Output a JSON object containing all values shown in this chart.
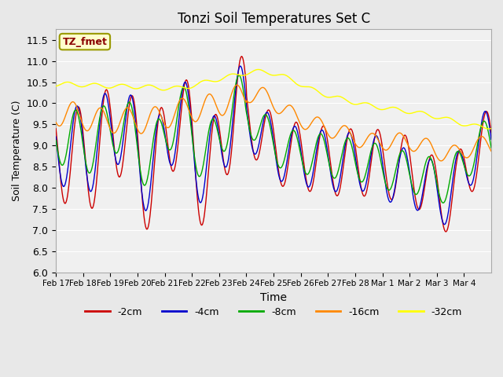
{
  "title": "Tonzi Soil Temperatures Set C",
  "xlabel": "Time",
  "ylabel": "Soil Temperature (C)",
  "ylim": [
    6.0,
    11.75
  ],
  "yticks": [
    6.0,
    6.5,
    7.0,
    7.5,
    8.0,
    8.5,
    9.0,
    9.5,
    10.0,
    10.5,
    11.0,
    11.5
  ],
  "legend_label": "TZ_fmet",
  "legend_box_color": "#ffffcc",
  "legend_box_edge": "#999900",
  "legend_text_color": "#8B0000",
  "colors": {
    "-2cm": "#cc0000",
    "-4cm": "#0000cc",
    "-8cm": "#00aa00",
    "-16cm": "#ff8800",
    "-32cm": "#ffff00"
  },
  "bg_color": "#e8e8e8",
  "plot_bg": "#f0f0f0",
  "grid_color": "#ffffff",
  "date_labels": [
    "Feb 17",
    "Feb 18",
    "Feb 19",
    "Feb 20",
    "Feb 21",
    "Feb 22",
    "Feb 23",
    "Feb 24",
    "Feb 25",
    "Feb 26",
    "Feb 27",
    "Feb 28",
    "Mar 1",
    "Mar 2",
    "Mar 3",
    "Mar 4"
  ],
  "n_days": 16,
  "n_per_day": 48,
  "diurnal_2cm": [
    1.2,
    1.2,
    1.2,
    1.2,
    1.2,
    1.2,
    1.2,
    0.8,
    0.8,
    0.8,
    0.8,
    0.8,
    0.8,
    0.8,
    0.8,
    0.8
  ],
  "diurnal_4cm": [
    1.0,
    1.0,
    1.0,
    1.0,
    1.0,
    1.0,
    1.0,
    0.7,
    0.7,
    0.7,
    0.7,
    0.7,
    0.7,
    0.7,
    0.7,
    0.7
  ],
  "diurnal_8cm": [
    0.7,
    0.7,
    0.7,
    0.7,
    0.7,
    0.7,
    0.7,
    0.5,
    0.5,
    0.5,
    0.5,
    0.5,
    0.5,
    0.5,
    0.5,
    0.5
  ],
  "diurnal_16cm": [
    0.3,
    0.3,
    0.3,
    0.3,
    0.3,
    0.3,
    0.3,
    0.2,
    0.2,
    0.2,
    0.2,
    0.2,
    0.2,
    0.2,
    0.2,
    0.2
  ],
  "diurnal_32cm": [
    0.05,
    0.05,
    0.05,
    0.05,
    0.05,
    0.05,
    0.05,
    0.05,
    0.05,
    0.05,
    0.05,
    0.05,
    0.05,
    0.05,
    0.05,
    0.05
  ],
  "daily_mean_2cm": [
    8.8,
    8.8,
    9.4,
    8.2,
    9.7,
    8.2,
    9.8,
    9.3,
    8.8,
    8.7,
    8.6,
    8.6,
    8.5,
    8.2,
    7.8,
    8.9
  ],
  "daily_mean_4cm": [
    9.0,
    9.0,
    9.5,
    8.4,
    9.7,
    8.5,
    9.8,
    9.3,
    8.8,
    8.7,
    8.6,
    8.6,
    8.3,
    8.1,
    7.9,
    9.0
  ],
  "daily_mean_8cm": [
    9.2,
    9.1,
    9.5,
    8.7,
    9.8,
    8.8,
    9.9,
    9.4,
    8.9,
    8.8,
    8.7,
    8.6,
    8.4,
    8.3,
    8.2,
    9.0
  ],
  "daily_mean_16cm": [
    9.75,
    9.6,
    9.6,
    9.6,
    9.8,
    9.9,
    10.1,
    10.2,
    9.8,
    9.5,
    9.3,
    9.1,
    9.1,
    9.0,
    8.8,
    9.0
  ],
  "daily_mean_32cm": [
    10.45,
    10.42,
    10.4,
    10.38,
    10.36,
    10.5,
    10.65,
    10.75,
    10.6,
    10.3,
    10.1,
    9.95,
    9.85,
    9.75,
    9.6,
    9.45
  ],
  "phase_shift_2cm": 0.0,
  "phase_shift_4cm": 0.05,
  "phase_shift_8cm": 0.1,
  "phase_shift_16cm": 0.2,
  "phase_shift_32cm": 0.4
}
